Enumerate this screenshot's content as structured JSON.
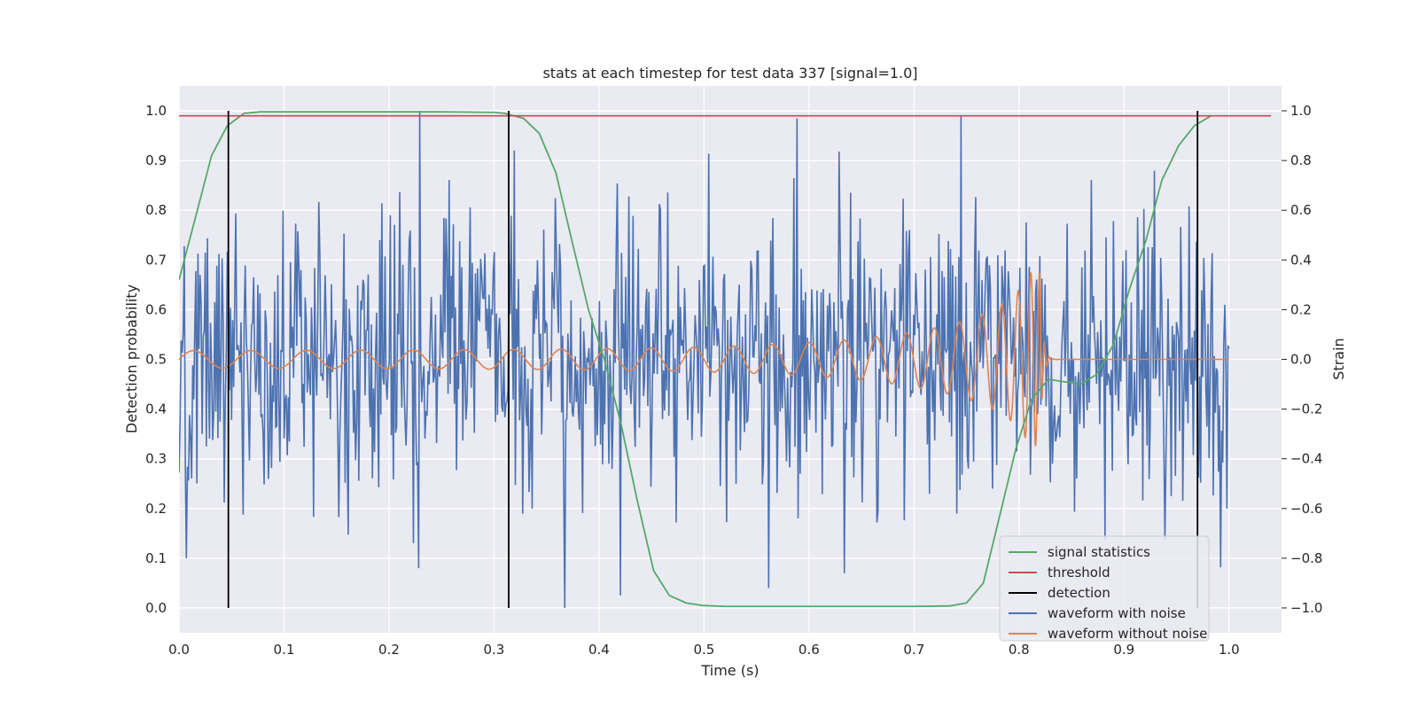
{
  "chart_data": {
    "type": "line",
    "title": "stats at each timestep for test data 337 [signal=1.0]",
    "xlabel": "Time (s)",
    "ylabel_left": "Detection probability",
    "ylabel_right": "Strain",
    "xlim": [
      0.0,
      1.05
    ],
    "ylim_left": [
      -0.05,
      1.05
    ],
    "ylim_right": [
      -1.1,
      1.1
    ],
    "xticks": [
      "0.0",
      "0.1",
      "0.2",
      "0.3",
      "0.4",
      "0.5",
      "0.6",
      "0.7",
      "0.8",
      "0.9",
      "1.0"
    ],
    "yticks_left": [
      "0.0",
      "0.1",
      "0.2",
      "0.3",
      "0.4",
      "0.5",
      "0.6",
      "0.7",
      "0.8",
      "0.9",
      "1.0"
    ],
    "yticks_right": [
      "−1.0",
      "−0.8",
      "−0.6",
      "−0.4",
      "−0.2",
      "0.0",
      "0.2",
      "0.4",
      "0.6",
      "0.8",
      "1.0"
    ],
    "grid": true,
    "legend_position": "lower-right",
    "colors": {
      "signal_statistics": "#55a868",
      "threshold": "#c44e52",
      "detection": "#000000",
      "waveform_with_noise": "#4c72b0",
      "waveform_without_noise": "#dd8452",
      "plot_background": "#eaeaf2"
    },
    "series": [
      {
        "name": "signal statistics",
        "axis": "left",
        "x": [
          0.0,
          0.015,
          0.031,
          0.046,
          0.062,
          0.077,
          0.1,
          0.15,
          0.2,
          0.25,
          0.3,
          0.31,
          0.328,
          0.343,
          0.359,
          0.374,
          0.39,
          0.405,
          0.421,
          0.436,
          0.452,
          0.467,
          0.483,
          0.498,
          0.52,
          0.6,
          0.7,
          0.734,
          0.75,
          0.766,
          0.781,
          0.797,
          0.812,
          0.828,
          0.843,
          0.859,
          0.874,
          0.89,
          0.905,
          0.921,
          0.936,
          0.952,
          0.967,
          0.983
        ],
        "y": [
          0.66,
          0.78,
          0.91,
          0.97,
          0.995,
          0.998,
          0.998,
          0.998,
          0.998,
          0.998,
          0.997,
          0.995,
          0.985,
          0.955,
          0.875,
          0.74,
          0.6,
          0.5,
          0.37,
          0.22,
          0.075,
          0.025,
          0.01,
          0.005,
          0.003,
          0.003,
          0.003,
          0.004,
          0.01,
          0.05,
          0.18,
          0.32,
          0.42,
          0.46,
          0.455,
          0.45,
          0.47,
          0.53,
          0.64,
          0.74,
          0.86,
          0.93,
          0.97,
          0.99
        ]
      },
      {
        "name": "threshold",
        "axis": "left",
        "x": [
          0.0,
          1.04
        ],
        "y": [
          0.99,
          0.99
        ]
      },
      {
        "name": "detection",
        "axis": "left",
        "x": [
          0.047,
          0.314,
          0.97
        ],
        "y_range": [
          0.0,
          1.0
        ]
      },
      {
        "name": "waveform with noise",
        "axis": "right",
        "sample_count": 1000,
        "x_range": [
          0.0,
          1.0
        ],
        "y_range": [
          -1.0,
          1.0
        ],
        "std": 0.28,
        "peaks": [
          {
            "x": 0.229,
            "y": 1.0
          },
          {
            "x": 0.745,
            "y": 0.98
          },
          {
            "x": 0.367,
            "y": -1.0
          },
          {
            "x": 0.42,
            "y": -0.95
          },
          {
            "x": 0.228,
            "y": -0.84
          },
          {
            "x": 0.562,
            "y": -0.92
          },
          {
            "x": 0.634,
            "y": -0.86
          }
        ]
      },
      {
        "name": "waveform without noise",
        "axis": "right",
        "x_range": [
          0.0,
          1.0
        ],
        "merger_time": 0.82,
        "peak_strain": 0.35,
        "early_amplitude": 0.035,
        "early_frequency_hz": 18
      }
    ]
  }
}
